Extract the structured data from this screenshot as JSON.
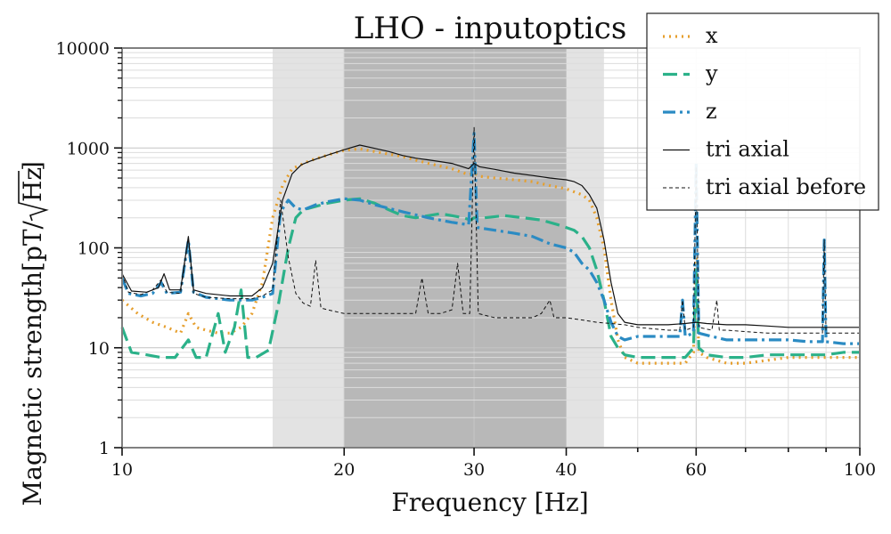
{
  "chart_data": {
    "type": "line",
    "title": "LHO - inputoptics",
    "xlabel": "Frequency [Hz]",
    "ylabel_text": "Magnetic strength[pT/",
    "ylabel_sqrt": "Hz",
    "ylabel_close": "]",
    "xscale": "log",
    "yscale": "log",
    "xlim": [
      10,
      100
    ],
    "ylim": [
      1,
      10000
    ],
    "grid": true,
    "legend_position": "top-right",
    "xticks": [
      {
        "value": 10,
        "label": "10"
      },
      {
        "value": 20,
        "label": "20"
      },
      {
        "value": 30,
        "label": "30"
      },
      {
        "value": 40,
        "label": "40"
      },
      {
        "value": 60,
        "label": "60"
      },
      {
        "value": 100,
        "label": "100"
      }
    ],
    "yticks": [
      {
        "value": 1,
        "label": "1"
      },
      {
        "value": 10,
        "label": "10"
      },
      {
        "value": 100,
        "label": "100"
      },
      {
        "value": 1000,
        "label": "1000"
      },
      {
        "value": 10000,
        "label": "10000"
      }
    ],
    "shaded_bands": [
      {
        "from": 16,
        "to": 45,
        "color": "#e3e3e3"
      },
      {
        "from": 20,
        "to": 40,
        "color": "#b8b8b8"
      }
    ],
    "series": [
      {
        "name": "x",
        "color": "#e69f2e",
        "dash": "2 5",
        "width": 3.2,
        "points": [
          [
            10,
            30
          ],
          [
            10.5,
            22
          ],
          [
            11,
            18
          ],
          [
            11.5,
            16
          ],
          [
            12,
            14
          ],
          [
            12.3,
            22
          ],
          [
            12.6,
            16
          ],
          [
            13,
            15
          ],
          [
            13.5,
            14
          ],
          [
            14,
            14
          ],
          [
            14.5,
            16
          ],
          [
            15,
            22
          ],
          [
            15.5,
            45
          ],
          [
            16,
            200
          ],
          [
            16.5,
            420
          ],
          [
            17,
            620
          ],
          [
            18,
            750
          ],
          [
            19,
            850
          ],
          [
            20,
            950
          ],
          [
            21,
            980
          ],
          [
            22,
            920
          ],
          [
            24,
            820
          ],
          [
            26,
            700
          ],
          [
            28,
            620
          ],
          [
            29.5,
            540
          ],
          [
            30,
            560
          ],
          [
            30.5,
            520
          ],
          [
            32,
            500
          ],
          [
            34,
            480
          ],
          [
            36,
            460
          ],
          [
            38,
            420
          ],
          [
            40,
            390
          ],
          [
            42,
            340
          ],
          [
            43,
            300
          ],
          [
            44,
            200
          ],
          [
            45,
            100
          ],
          [
            46,
            30
          ],
          [
            47,
            12
          ],
          [
            48,
            8
          ],
          [
            50,
            7
          ],
          [
            55,
            7
          ],
          [
            58,
            7
          ],
          [
            59.5,
            9
          ],
          [
            60,
            80
          ],
          [
            60.5,
            9
          ],
          [
            62,
            8
          ],
          [
            66,
            7
          ],
          [
            70,
            7
          ],
          [
            75,
            7.5
          ],
          [
            80,
            8
          ],
          [
            85,
            8
          ],
          [
            90,
            8
          ],
          [
            95,
            8
          ],
          [
            100,
            8
          ]
        ]
      },
      {
        "name": "y",
        "color": "#2bb189",
        "dash": "16 7",
        "width": 3.2,
        "points": [
          [
            10,
            16
          ],
          [
            10.3,
            9
          ],
          [
            10.8,
            8.5
          ],
          [
            11.3,
            8
          ],
          [
            11.8,
            8
          ],
          [
            12.3,
            12
          ],
          [
            12.6,
            8
          ],
          [
            13,
            8
          ],
          [
            13.5,
            22
          ],
          [
            13.8,
            9
          ],
          [
            14.2,
            16
          ],
          [
            14.5,
            38
          ],
          [
            14.8,
            8
          ],
          [
            15.2,
            8
          ],
          [
            15.8,
            9.5
          ],
          [
            16.3,
            28
          ],
          [
            16.8,
            100
          ],
          [
            17.2,
            200
          ],
          [
            17.6,
            240
          ],
          [
            18.3,
            260
          ],
          [
            19,
            280
          ],
          [
            20,
            300
          ],
          [
            21,
            310
          ],
          [
            22,
            280
          ],
          [
            23,
            240
          ],
          [
            24,
            210
          ],
          [
            25,
            200
          ],
          [
            26,
            210
          ],
          [
            27,
            220
          ],
          [
            28,
            210
          ],
          [
            29,
            200
          ],
          [
            29.7,
            190
          ],
          [
            30,
            200
          ],
          [
            31,
            200
          ],
          [
            33,
            210
          ],
          [
            35,
            200
          ],
          [
            37,
            190
          ],
          [
            39,
            170
          ],
          [
            40,
            160
          ],
          [
            41,
            150
          ],
          [
            42,
            130
          ],
          [
            43,
            100
          ],
          [
            44,
            60
          ],
          [
            45,
            30
          ],
          [
            46,
            13
          ],
          [
            47,
            10
          ],
          [
            48,
            8.5
          ],
          [
            50,
            8
          ],
          [
            55,
            8
          ],
          [
            58,
            8
          ],
          [
            59.5,
            10
          ],
          [
            60,
            60
          ],
          [
            60.5,
            10
          ],
          [
            62,
            8.5
          ],
          [
            66,
            8
          ],
          [
            70,
            8
          ],
          [
            75,
            8.5
          ],
          [
            80,
            8.5
          ],
          [
            85,
            8.5
          ],
          [
            90,
            8.5
          ],
          [
            95,
            9
          ],
          [
            100,
            9
          ]
        ]
      },
      {
        "name": "z",
        "color": "#2b8bc3",
        "dash": "14 5 3 5",
        "width": 3.2,
        "points": [
          [
            10,
            50
          ],
          [
            10.2,
            35
          ],
          [
            10.6,
            33
          ],
          [
            11,
            35
          ],
          [
            11.3,
            45
          ],
          [
            11.5,
            35
          ],
          [
            12,
            36
          ],
          [
            12.3,
            120
          ],
          [
            12.5,
            36
          ],
          [
            13,
            32
          ],
          [
            14,
            30
          ],
          [
            15,
            30
          ],
          [
            15.5,
            32
          ],
          [
            16,
            35
          ],
          [
            16.4,
            230
          ],
          [
            16.8,
            300
          ],
          [
            17.2,
            250
          ],
          [
            17.6,
            240
          ],
          [
            18.3,
            270
          ],
          [
            19,
            290
          ],
          [
            20,
            310
          ],
          [
            21,
            300
          ],
          [
            22,
            270
          ],
          [
            24,
            230
          ],
          [
            26,
            200
          ],
          [
            28,
            180
          ],
          [
            29.5,
            170
          ],
          [
            30,
            1400
          ],
          [
            30.3,
            160
          ],
          [
            32,
            150
          ],
          [
            34,
            140
          ],
          [
            36,
            130
          ],
          [
            38,
            110
          ],
          [
            40,
            100
          ],
          [
            41,
            90
          ],
          [
            42,
            70
          ],
          [
            43,
            60
          ],
          [
            44,
            45
          ],
          [
            45,
            30
          ],
          [
            46,
            18
          ],
          [
            47,
            13
          ],
          [
            48,
            12
          ],
          [
            50,
            13
          ],
          [
            55,
            13
          ],
          [
            57,
            13
          ],
          [
            57.5,
            30
          ],
          [
            58,
            13
          ],
          [
            59.5,
            14
          ],
          [
            60,
            700
          ],
          [
            60.5,
            14
          ],
          [
            63,
            13
          ],
          [
            66,
            12
          ],
          [
            70,
            12
          ],
          [
            75,
            12
          ],
          [
            80,
            12
          ],
          [
            85,
            11.5
          ],
          [
            89,
            11.5
          ],
          [
            89.5,
            120
          ],
          [
            90,
            11.5
          ],
          [
            95,
            11
          ],
          [
            100,
            11
          ]
        ]
      },
      {
        "name": "tri axial",
        "color": "#111111",
        "dash": "",
        "width": 1.2,
        "points": [
          [
            10,
            55
          ],
          [
            10.3,
            37
          ],
          [
            10.8,
            36
          ],
          [
            11.2,
            40
          ],
          [
            11.4,
            55
          ],
          [
            11.6,
            38
          ],
          [
            12,
            38
          ],
          [
            12.3,
            130
          ],
          [
            12.5,
            38
          ],
          [
            13,
            35
          ],
          [
            14,
            33
          ],
          [
            15,
            33
          ],
          [
            15.5,
            40
          ],
          [
            16,
            70
          ],
          [
            16.5,
            300
          ],
          [
            17,
            550
          ],
          [
            17.5,
            680
          ],
          [
            18,
            740
          ],
          [
            19,
            850
          ],
          [
            20,
            960
          ],
          [
            21,
            1070
          ],
          [
            22,
            990
          ],
          [
            23,
            920
          ],
          [
            24,
            840
          ],
          [
            25,
            790
          ],
          [
            26,
            760
          ],
          [
            27,
            730
          ],
          [
            28,
            700
          ],
          [
            29.5,
            620
          ],
          [
            30,
            700
          ],
          [
            30.5,
            650
          ],
          [
            32,
            610
          ],
          [
            34,
            560
          ],
          [
            36,
            530
          ],
          [
            38,
            500
          ],
          [
            40,
            480
          ],
          [
            41,
            460
          ],
          [
            42,
            420
          ],
          [
            43,
            340
          ],
          [
            44,
            250
          ],
          [
            45,
            120
          ],
          [
            46,
            45
          ],
          [
            47,
            22
          ],
          [
            48,
            18
          ],
          [
            50,
            17
          ],
          [
            55,
            17
          ],
          [
            58,
            17.5
          ],
          [
            60,
            18
          ],
          [
            62,
            17.5
          ],
          [
            66,
            17
          ],
          [
            70,
            17
          ],
          [
            75,
            16.5
          ],
          [
            80,
            16
          ],
          [
            85,
            16
          ],
          [
            90,
            16
          ],
          [
            95,
            16
          ],
          [
            100,
            16
          ]
        ]
      },
      {
        "name": "tri axial before",
        "color": "#111111",
        "dash": "4 3",
        "width": 1.0,
        "points": [
          [
            10,
            55
          ],
          [
            10.2,
            36
          ],
          [
            10.6,
            34
          ],
          [
            11,
            38
          ],
          [
            11.3,
            48
          ],
          [
            11.5,
            36
          ],
          [
            12,
            35
          ],
          [
            12.3,
            125
          ],
          [
            12.5,
            35
          ],
          [
            13,
            32
          ],
          [
            14,
            31
          ],
          [
            15,
            31
          ],
          [
            15.5,
            33
          ],
          [
            16,
            38
          ],
          [
            16.4,
            300
          ],
          [
            16.8,
            80
          ],
          [
            17.2,
            35
          ],
          [
            17.6,
            28
          ],
          [
            18,
            26
          ],
          [
            18.3,
            75
          ],
          [
            18.6,
            25
          ],
          [
            19,
            24
          ],
          [
            20,
            22
          ],
          [
            21,
            22
          ],
          [
            22,
            22
          ],
          [
            23,
            22
          ],
          [
            24,
            22
          ],
          [
            25,
            22
          ],
          [
            25.5,
            50
          ],
          [
            26,
            22
          ],
          [
            27,
            22
          ],
          [
            28,
            24
          ],
          [
            28.5,
            70
          ],
          [
            29,
            22
          ],
          [
            29.6,
            22
          ],
          [
            30,
            1600
          ],
          [
            30.4,
            22
          ],
          [
            32,
            20
          ],
          [
            33,
            20
          ],
          [
            34,
            20
          ],
          [
            35,
            20
          ],
          [
            36,
            20
          ],
          [
            37,
            22
          ],
          [
            38,
            30
          ],
          [
            38.5,
            20
          ],
          [
            40,
            20
          ],
          [
            42,
            19
          ],
          [
            44,
            18
          ],
          [
            46,
            17.5
          ],
          [
            48,
            17
          ],
          [
            50,
            16
          ],
          [
            55,
            15
          ],
          [
            57,
            15
          ],
          [
            57.5,
            30
          ],
          [
            58,
            15
          ],
          [
            59.5,
            16
          ],
          [
            60,
            650
          ],
          [
            60.5,
            16
          ],
          [
            63,
            15
          ],
          [
            64,
            30
          ],
          [
            64.5,
            15
          ],
          [
            66,
            15
          ],
          [
            70,
            14.5
          ],
          [
            75,
            14
          ],
          [
            80,
            14
          ],
          [
            85,
            14
          ],
          [
            89,
            14
          ],
          [
            89.5,
            120
          ],
          [
            90,
            14
          ],
          [
            95,
            14
          ],
          [
            100,
            14
          ]
        ]
      }
    ]
  }
}
